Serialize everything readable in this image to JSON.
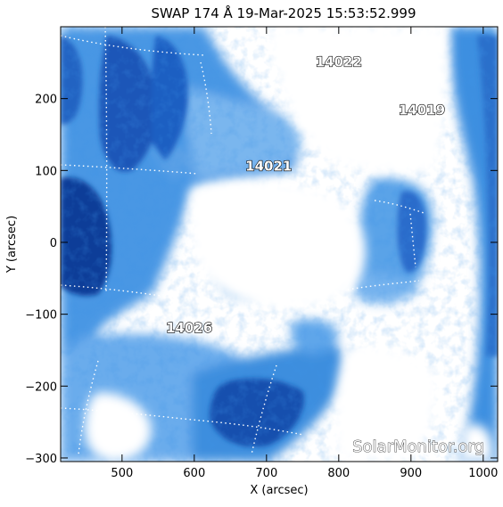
{
  "title": "SWAP 174 Å 19-Mar-2025 15:53:52.999",
  "colors": {
    "background_frame": "#ffffff",
    "emission_bright": "#ffffff",
    "emission_mid": "#3c8fe0",
    "emission_dark": "#0a3f9a",
    "grid": "#ffffff",
    "axes": "#000000"
  },
  "map": {
    "type": "solar EUV image",
    "x_axis": {
      "label": "X (arcsec)",
      "range": [
        415,
        1020
      ],
      "ticks": [
        {
          "value": 500,
          "label": "500"
        },
        {
          "value": 600,
          "label": "600"
        },
        {
          "value": 700,
          "label": "700"
        },
        {
          "value": 800,
          "label": "800"
        },
        {
          "value": 900,
          "label": "900"
        },
        {
          "value": 1000,
          "label": "1000"
        }
      ]
    },
    "y_axis": {
      "label": "Y (arcsec)",
      "range": [
        -305,
        300
      ],
      "ticks": [
        {
          "value": 200,
          "label": "200"
        },
        {
          "value": 100,
          "label": "100"
        },
        {
          "value": 0,
          "label": "0"
        },
        {
          "value": -100,
          "label": "−100"
        },
        {
          "value": -200,
          "label": "−200"
        },
        {
          "value": -300,
          "label": "−300"
        }
      ]
    },
    "active_regions": [
      {
        "label": "14022",
        "x": 800,
        "y": 245
      },
      {
        "label": "14019",
        "x": 915,
        "y": 178
      },
      {
        "label": "14021",
        "x": 703,
        "y": 100
      },
      {
        "label": "14026",
        "x": 593,
        "y": -125
      }
    ],
    "watermark": "SolarMonitor.org"
  }
}
